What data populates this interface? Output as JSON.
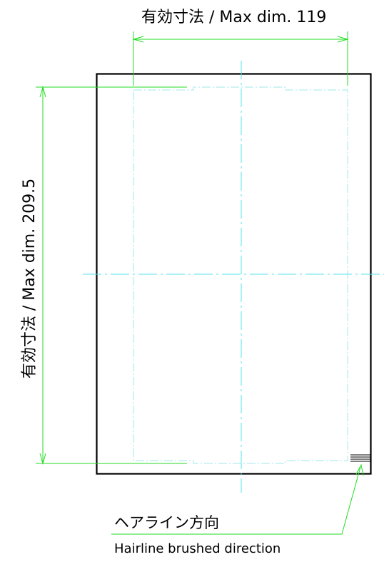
{
  "dimensions": {
    "width_label": "有効寸法 / Max dim. 119",
    "height_label": "有効寸法 / Max dim. 209.5"
  },
  "hairline_note": {
    "label_jp": "ヘアライン方向",
    "label_en": "Hairline brushed direction"
  },
  "colors": {
    "outline": "#000000",
    "dimension_lines": "#22dd22",
    "center_lines": "#55e0e8",
    "print_area": "#9fe8ee"
  }
}
